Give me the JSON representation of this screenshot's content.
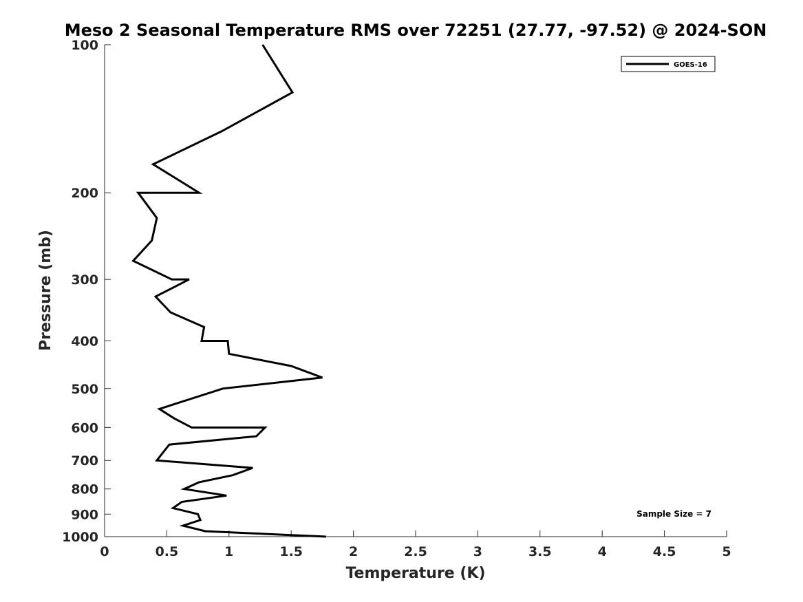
{
  "chart_data": {
    "type": "line",
    "title": "Meso 2 Seasonal Temperature RMS over 72251 (27.77, -97.52) @ 2024-SON",
    "xlabel": "Temperature (K)",
    "ylabel": "Pressure (mb)",
    "xlim": [
      0,
      5
    ],
    "ylim": [
      1000,
      100
    ],
    "yscale": "log",
    "x_ticks": [
      "0",
      "0.5",
      "1",
      "1.5",
      "2",
      "2.5",
      "3",
      "3.5",
      "4",
      "4.5",
      "5"
    ],
    "y_ticks": [
      "100",
      "200",
      "300",
      "400",
      "500",
      "600",
      "700",
      "800",
      "900",
      "1000"
    ],
    "grid": false,
    "legend_position": "top-right",
    "series": [
      {
        "name": "GOES-16",
        "color": "#000000",
        "points": [
          {
            "x": 1.27,
            "y": 100
          },
          {
            "x": 1.51,
            "y": 125
          },
          {
            "x": 0.94,
            "y": 150
          },
          {
            "x": 0.39,
            "y": 175
          },
          {
            "x": 0.76,
            "y": 200
          },
          {
            "x": 0.27,
            "y": 200
          },
          {
            "x": 0.42,
            "y": 225
          },
          {
            "x": 0.38,
            "y": 250
          },
          {
            "x": 0.23,
            "y": 275
          },
          {
            "x": 0.54,
            "y": 300
          },
          {
            "x": 0.68,
            "y": 300
          },
          {
            "x": 0.41,
            "y": 325
          },
          {
            "x": 0.53,
            "y": 350
          },
          {
            "x": 0.8,
            "y": 375
          },
          {
            "x": 0.78,
            "y": 400
          },
          {
            "x": 0.99,
            "y": 400
          },
          {
            "x": 1.0,
            "y": 425
          },
          {
            "x": 1.5,
            "y": 450
          },
          {
            "x": 1.75,
            "y": 475
          },
          {
            "x": 0.95,
            "y": 500
          },
          {
            "x": 0.44,
            "y": 550
          },
          {
            "x": 0.56,
            "y": 575
          },
          {
            "x": 0.7,
            "y": 600
          },
          {
            "x": 1.29,
            "y": 600
          },
          {
            "x": 1.22,
            "y": 625
          },
          {
            "x": 0.52,
            "y": 650
          },
          {
            "x": 0.42,
            "y": 700
          },
          {
            "x": 1.19,
            "y": 725
          },
          {
            "x": 1.03,
            "y": 750
          },
          {
            "x": 0.76,
            "y": 775
          },
          {
            "x": 0.64,
            "y": 800
          },
          {
            "x": 0.98,
            "y": 825
          },
          {
            "x": 0.62,
            "y": 850
          },
          {
            "x": 0.55,
            "y": 875
          },
          {
            "x": 0.75,
            "y": 900
          },
          {
            "x": 0.77,
            "y": 925
          },
          {
            "x": 0.63,
            "y": 950
          },
          {
            "x": 0.81,
            "y": 975
          },
          {
            "x": 1.78,
            "y": 1000
          }
        ]
      }
    ],
    "annotations": [
      "Sample Size = 7"
    ]
  }
}
